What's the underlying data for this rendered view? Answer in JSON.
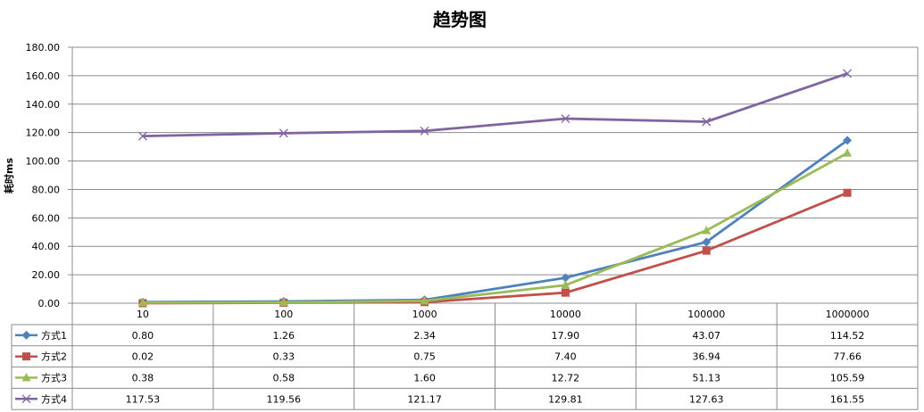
{
  "chart_data": {
    "type": "line",
    "title": "趋势图",
    "ylabel": "耗时ms",
    "xlabel": "",
    "ylim": [
      0,
      180
    ],
    "y_ticks": [
      "0.00",
      "20.00",
      "40.00",
      "60.00",
      "80.00",
      "100.00",
      "120.00",
      "140.00",
      "160.00",
      "180.00"
    ],
    "categories": [
      "10",
      "100",
      "1000",
      "10000",
      "100000",
      "1000000"
    ],
    "grid": "horizontal",
    "legend": "data-table",
    "series": [
      {
        "name": "方式1",
        "color": "#4F81BD",
        "marker": "diamond",
        "values": [
          0.8,
          1.26,
          2.34,
          17.9,
          43.07,
          114.52
        ],
        "labels": [
          "0.80",
          "1.26",
          "2.34",
          "17.90",
          "43.07",
          "114.52"
        ]
      },
      {
        "name": "方式2",
        "color": "#C0504D",
        "marker": "square",
        "values": [
          0.02,
          0.33,
          0.75,
          7.4,
          36.94,
          77.66
        ],
        "labels": [
          "0.02",
          "0.33",
          "0.75",
          "7.40",
          "36.94",
          "77.66"
        ]
      },
      {
        "name": "方式3",
        "color": "#9BBB59",
        "marker": "triangle",
        "values": [
          0.38,
          0.58,
          1.6,
          12.72,
          51.13,
          105.59
        ],
        "labels": [
          "0.38",
          "0.58",
          "1.60",
          "12.72",
          "51.13",
          "105.59"
        ]
      },
      {
        "name": "方式4",
        "color": "#8064A2",
        "marker": "x",
        "values": [
          117.53,
          119.56,
          121.17,
          129.81,
          127.63,
          161.55
        ],
        "labels": [
          "117.53",
          "119.56",
          "121.17",
          "129.81",
          "127.63",
          "161.55"
        ]
      }
    ]
  }
}
